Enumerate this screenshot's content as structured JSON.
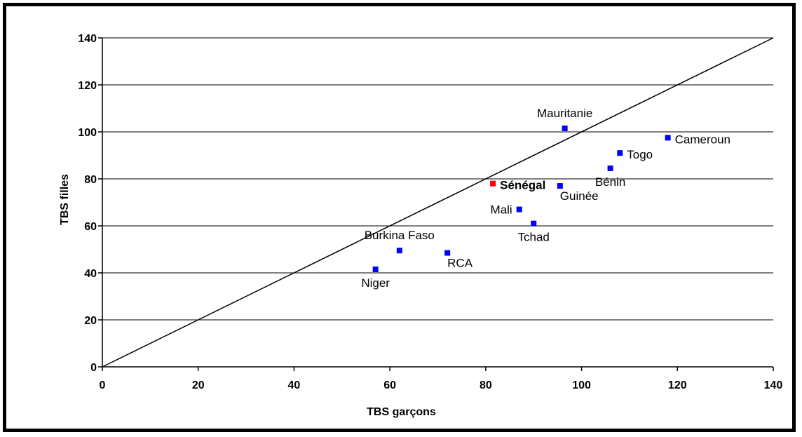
{
  "chart_data": {
    "type": "scatter",
    "title": "",
    "xlabel": "TBS garçons",
    "ylabel": "TBS filles",
    "xlim": [
      0,
      140
    ],
    "ylim": [
      0,
      140
    ],
    "xticks": [
      0,
      20,
      40,
      60,
      80,
      100,
      120,
      140
    ],
    "yticks": [
      0,
      20,
      40,
      60,
      80,
      100,
      120,
      140
    ],
    "grid": "horizontal",
    "legend": "none",
    "reference_line": {
      "from": [
        0,
        0
      ],
      "to": [
        140,
        140
      ],
      "color": "#000000"
    },
    "colors": {
      "default": "#0000ff",
      "highlight": "#ff0000",
      "gridline": "#000000"
    },
    "points": [
      {
        "label": "Mauritanie",
        "x": 96.5,
        "y": 101.5,
        "highlight": false,
        "label_pos": "above"
      },
      {
        "label": "Cameroun",
        "x": 118,
        "y": 97.5,
        "highlight": false,
        "label_pos": "right"
      },
      {
        "label": "Togo",
        "x": 108,
        "y": 91,
        "highlight": false,
        "label_pos": "right"
      },
      {
        "label": "Bénin",
        "x": 106,
        "y": 84.5,
        "highlight": false,
        "label_pos": "below"
      },
      {
        "label": "Sénégal",
        "x": 81.5,
        "y": 78,
        "highlight": true,
        "label_pos": "right"
      },
      {
        "label": "Guinée",
        "x": 95.5,
        "y": 77,
        "highlight": false,
        "label_pos": "below-right"
      },
      {
        "label": "Mali",
        "x": 87,
        "y": 67,
        "highlight": false,
        "label_pos": "left"
      },
      {
        "label": "Tchad",
        "x": 90,
        "y": 61,
        "highlight": false,
        "label_pos": "below"
      },
      {
        "label": "Burkina Faso",
        "x": 62,
        "y": 49.5,
        "highlight": false,
        "label_pos": "above"
      },
      {
        "label": "RCA",
        "x": 72,
        "y": 48.5,
        "highlight": false,
        "label_pos": "below-right"
      },
      {
        "label": "Niger",
        "x": 57,
        "y": 41.5,
        "highlight": false,
        "label_pos": "below"
      }
    ]
  }
}
